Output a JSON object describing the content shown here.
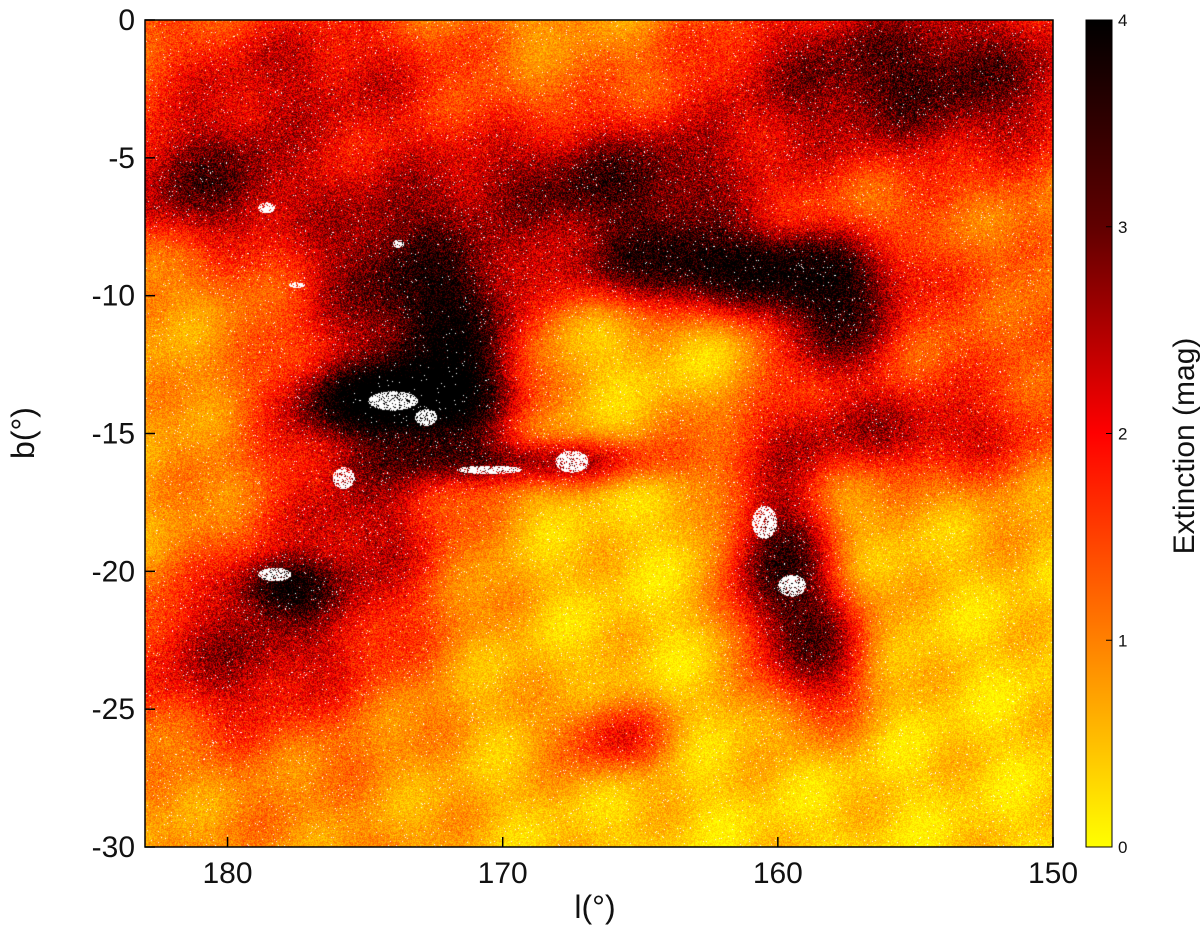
{
  "chart_data": {
    "type": "heatmap",
    "title": "",
    "xlabel": "l(°)",
    "ylabel": "b(°)",
    "xlim": [
      183,
      150
    ],
    "ylim": [
      -30,
      0
    ],
    "x_reversed": true,
    "x_ticks": [
      180,
      170,
      160,
      150
    ],
    "x_tick_labels": [
      "180",
      "170",
      "160",
      "150"
    ],
    "y_ticks": [
      0,
      -5,
      -10,
      -15,
      -20,
      -25,
      -30
    ],
    "y_tick_labels": [
      "0",
      "-5",
      "-10",
      "-15",
      "-20",
      "-25",
      "-30"
    ],
    "colorbar": {
      "label": "Extinction (mag)",
      "range": [
        0,
        4
      ],
      "ticks": [
        0,
        1,
        2,
        3,
        4
      ],
      "tick_labels": [
        "0",
        "1",
        "2",
        "3",
        "4"
      ],
      "colormap": [
        "#ffff00",
        "#ff8000",
        "#ff0000",
        "#600000",
        "#000000"
      ]
    },
    "colors": {
      "no_data": "#ffffff",
      "background_extinction": "#ffe000"
    },
    "grid": false,
    "features": [
      {
        "l": 155,
        "b": -2,
        "sl": 6,
        "sb": 2.5,
        "A": 3.0
      },
      {
        "l": 166,
        "b": -6,
        "sl": 4,
        "sb": 1.6,
        "A": 2.8
      },
      {
        "l": 162,
        "b": -9,
        "sl": 4,
        "sb": 1.1,
        "A": 3.5
      },
      {
        "l": 158,
        "b": -11,
        "sl": 1.7,
        "sb": 1.6,
        "A": 2.7
      },
      {
        "l": 174,
        "b": -13.8,
        "sl": 2.3,
        "sb": 0.9,
        "A": 3.6
      },
      {
        "l": 171.5,
        "b": -12,
        "sl": 1.6,
        "sb": 2.2,
        "A": 2.7
      },
      {
        "l": 174,
        "b": -9,
        "sl": 2.5,
        "sb": 2.5,
        "A": 2.2
      },
      {
        "l": 181,
        "b": -6,
        "sl": 2.5,
        "sb": 1.6,
        "A": 2.2
      },
      {
        "l": 160,
        "b": -19.5,
        "sl": 1.3,
        "sb": 2.2,
        "A": 3.0
      },
      {
        "l": 158.5,
        "b": -23,
        "sl": 1.4,
        "sb": 1.8,
        "A": 2.2
      },
      {
        "l": 169,
        "b": -16,
        "sl": 3.5,
        "sb": 0.6,
        "A": 2.0
      },
      {
        "l": 178,
        "b": -20.5,
        "sl": 1.2,
        "sb": 0.7,
        "A": 2.2
      },
      {
        "l": 175,
        "b": -18,
        "sl": 2.5,
        "sb": 3.5,
        "A": 1.6
      },
      {
        "l": 180,
        "b": -23,
        "sl": 3.0,
        "sb": 2.0,
        "A": 1.7
      },
      {
        "l": 177,
        "b": -2,
        "sl": 5.0,
        "sb": 2.0,
        "A": 1.4
      },
      {
        "l": 157,
        "b": -15,
        "sl": 4.0,
        "sb": 1.2,
        "A": 1.8
      },
      {
        "l": 166,
        "b": -26,
        "sl": 1.5,
        "sb": 1.0,
        "A": 1.5
      },
      {
        "l": 152,
        "b": -12,
        "sl": 3.0,
        "sb": 4.0,
        "A": 1.0
      }
    ],
    "white_patches": [
      {
        "l": 174,
        "b": -13.8,
        "sl": 0.9,
        "sb": 0.35
      },
      {
        "l": 172.8,
        "b": -14.4,
        "sl": 0.4,
        "sb": 0.3
      },
      {
        "l": 167.5,
        "b": -16.0,
        "sl": 0.6,
        "sb": 0.4
      },
      {
        "l": 170.5,
        "b": -16.3,
        "sl": 1.2,
        "sb": 0.15
      },
      {
        "l": 160.5,
        "b": -18.2,
        "sl": 0.45,
        "sb": 0.6
      },
      {
        "l": 159.5,
        "b": -20.5,
        "sl": 0.5,
        "sb": 0.4
      },
      {
        "l": 178.3,
        "b": -20.1,
        "sl": 0.6,
        "sb": 0.25
      },
      {
        "l": 178.6,
        "b": -6.8,
        "sl": 0.3,
        "sb": 0.2
      },
      {
        "l": 175.8,
        "b": -16.6,
        "sl": 0.4,
        "sb": 0.4
      },
      {
        "l": 173.8,
        "b": -8.1,
        "sl": 0.2,
        "sb": 0.15
      },
      {
        "l": 177.5,
        "b": -9.6,
        "sl": 0.3,
        "sb": 0.1
      }
    ]
  }
}
